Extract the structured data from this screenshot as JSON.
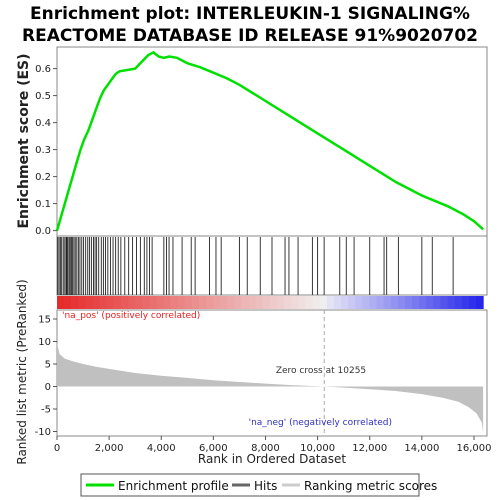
{
  "title_line1": "Enrichment plot: INTERLEUKIN-1 SIGNALING%",
  "title_line2": "REACTOME DATABASE ID RELEASE 91%9020702",
  "chart_data": {
    "type": "line",
    "x_range": [
      0,
      16500
    ],
    "xlabel": "Rank in Ordered Dataset",
    "x_ticks": [
      0,
      2000,
      4000,
      6000,
      8000,
      10000,
      12000,
      14000,
      16000
    ],
    "x_tick_labels": [
      "0",
      "2,000",
      "4,000",
      "6,000",
      "8,000",
      "10,000",
      "12,000",
      "14,000",
      "16,000"
    ],
    "es_panel": {
      "ylabel": "Enrichment score (ES)",
      "ylim": [
        -0.02,
        0.68
      ],
      "y_ticks": [
        0.0,
        0.1,
        0.2,
        0.3,
        0.4,
        0.5,
        0.6
      ],
      "y_tick_labels": [
        "0.0",
        "0.1",
        "0.2",
        "0.3",
        "0.4",
        "0.5",
        "0.6"
      ],
      "series": {
        "name": "Enrichment profile",
        "color": "#00e000",
        "x": [
          0,
          150,
          300,
          450,
          600,
          750,
          900,
          1050,
          1200,
          1350,
          1500,
          1650,
          1800,
          1950,
          2100,
          2250,
          2400,
          2700,
          3000,
          3300,
          3500,
          3700,
          3900,
          4100,
          4300,
          4600,
          5000,
          5500,
          6000,
          6500,
          7000,
          7500,
          8000,
          9000,
          10000,
          11000,
          12000,
          13000,
          14000,
          15000,
          15600,
          16000,
          16350
        ],
        "y": [
          0.0,
          0.05,
          0.1,
          0.15,
          0.2,
          0.25,
          0.3,
          0.34,
          0.37,
          0.41,
          0.45,
          0.49,
          0.52,
          0.54,
          0.56,
          0.58,
          0.59,
          0.595,
          0.6,
          0.63,
          0.65,
          0.66,
          0.645,
          0.64,
          0.645,
          0.64,
          0.62,
          0.605,
          0.585,
          0.565,
          0.54,
          0.51,
          0.48,
          0.42,
          0.36,
          0.3,
          0.24,
          0.18,
          0.13,
          0.09,
          0.06,
          0.035,
          0.005
        ]
      }
    },
    "hits": [
      30,
      80,
      130,
      180,
      240,
      300,
      350,
      380,
      420,
      470,
      510,
      560,
      600,
      650,
      700,
      760,
      820,
      880,
      950,
      1020,
      1100,
      1180,
      1250,
      1320,
      1400,
      1460,
      1520,
      1600,
      1700,
      1780,
      1860,
      1950,
      2050,
      2150,
      2250,
      2350,
      2450,
      2600,
      2750,
      2900,
      3050,
      3200,
      3350,
      3450,
      3550,
      3650,
      4100,
      4200,
      4300,
      4450,
      4800,
      5150,
      5300,
      5850,
      6100,
      6300,
      7000,
      7300,
      7800,
      8250,
      8750,
      8900,
      9250,
      9800,
      10000,
      10250,
      10850,
      11100,
      11400,
      12000,
      12550,
      12650,
      13100,
      14000,
      14400,
      15200
    ],
    "color_bar": {
      "labels": [
        "'na_pos' (positively correlated)",
        "'na_neg' (negatively correlated)"
      ],
      "label_colors": [
        "#e02020",
        "#3030c0"
      ]
    },
    "metric_panel": {
      "ylabel": "Ranked list metric (PreRanked)",
      "ylim": [
        -11,
        17
      ],
      "y_ticks": [
        -10,
        -5,
        0,
        5,
        10,
        15
      ],
      "y_tick_labels": [
        "-10",
        "-5",
        "0",
        "5",
        "10",
        "15"
      ],
      "zero_cross": 10255,
      "zero_cross_label": "Zero cross at 10255",
      "x": [
        0,
        100,
        300,
        600,
        1000,
        1500,
        2000,
        3000,
        4000,
        5000,
        6000,
        7000,
        8000,
        9000,
        10255,
        11000,
        12000,
        13000,
        14000,
        14800,
        15400,
        15800,
        16100,
        16300,
        16350
      ],
      "y": [
        9.6,
        7.2,
        6.2,
        5.6,
        5.0,
        4.4,
        3.9,
        3.0,
        2.4,
        1.9,
        1.4,
        1.0,
        0.65,
        0.3,
        0.0,
        -0.25,
        -0.6,
        -1.0,
        -1.7,
        -2.5,
        -3.4,
        -4.6,
        -6.0,
        -8.0,
        -10.2
      ]
    },
    "legend": [
      "Enrichment profile",
      "Hits",
      "Ranking metric scores"
    ]
  }
}
